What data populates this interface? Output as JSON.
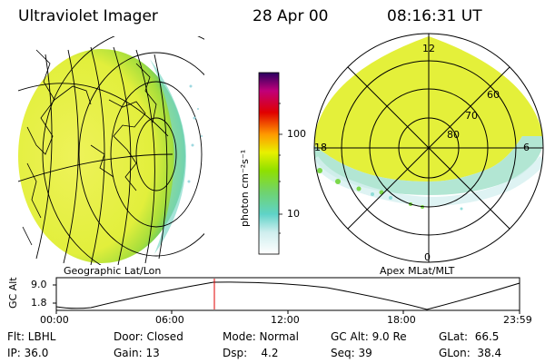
{
  "header": {
    "instrument": "Ultraviolet Imager",
    "date": "28 Apr 00",
    "time": "08:16:31 UT"
  },
  "left_panel": {
    "caption": "Geographic Lat/Lon"
  },
  "right_panel": {
    "caption": "Apex MLat/MLT",
    "mlt_labels": [
      "12",
      "18",
      "6",
      "0"
    ],
    "mlat_labels": [
      "60",
      "70",
      "80"
    ]
  },
  "colorbar": {
    "unit_label": "photon cm⁻²s⁻¹",
    "ticks": [
      "100",
      "10"
    ],
    "scale": "log"
  },
  "altitude_plot": {
    "ylabel": "GC Alt",
    "yticks": [
      "9.0",
      "1.8"
    ],
    "xticks": [
      "00:00",
      "06:00",
      "12:00",
      "18:00",
      "23:59"
    ],
    "current_time_marker": "08:16"
  },
  "info": {
    "filter": "Flt: LBHL",
    "ip": "IP: 36.0",
    "door": "Door: Closed",
    "gain": "Gain: 13",
    "mode": "Mode: Normal",
    "dsp": "Dsp:    4.2",
    "gc_alt": "GC Alt: 9.0 Re",
    "seq": "Seq: 39",
    "glat": "GLat:  66.5",
    "glon": "GLon:  38.4"
  },
  "colors": {
    "colorbar_stops": [
      "#ffffff",
      "#5fd3c8",
      "#8fe000",
      "#e8f000",
      "#ff9900",
      "#e00000",
      "#c0007a",
      "#2a0060"
    ],
    "aurora_fill": "#e4f03a",
    "aurora_edge": "#6bcf3a",
    "marker": "#e00000"
  }
}
